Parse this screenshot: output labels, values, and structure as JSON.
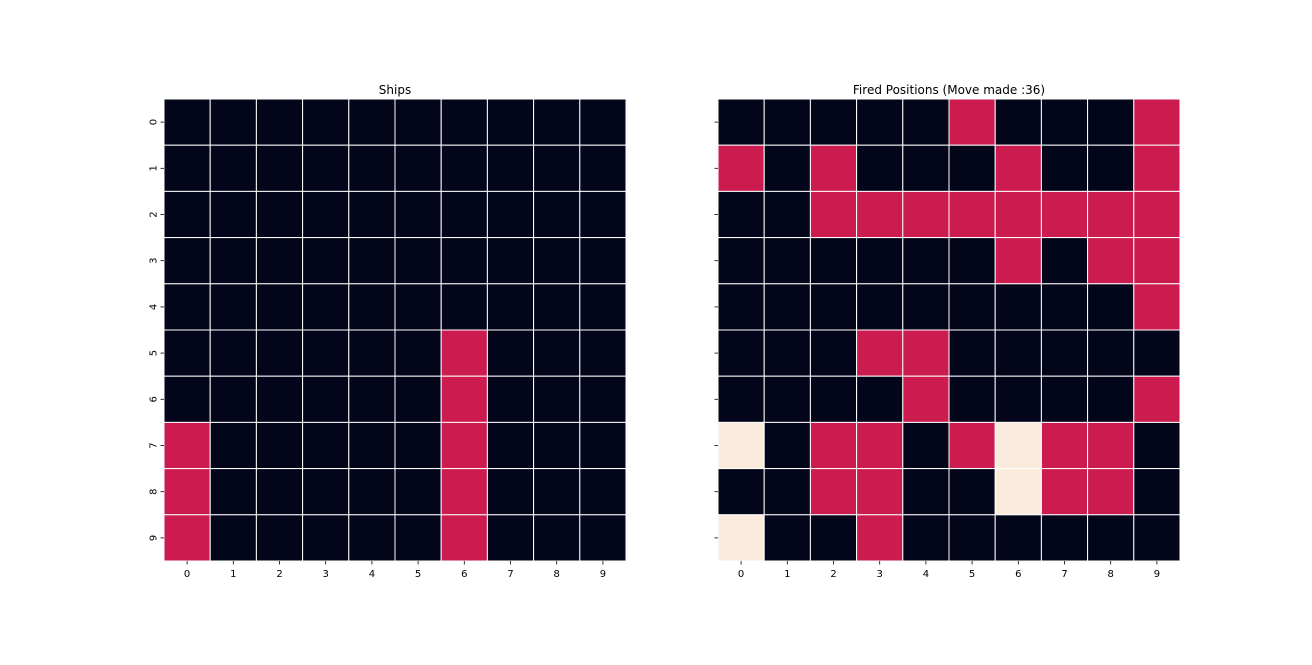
{
  "palette": {
    "0": "#03051a",
    "1": "#cb1b4f",
    "2": "#faebdd",
    "grid_line": "#ffffff"
  },
  "chart_data": [
    {
      "type": "heatmap",
      "title": "Ships",
      "x": [
        "0",
        "1",
        "2",
        "3",
        "4",
        "5",
        "6",
        "7",
        "8",
        "9"
      ],
      "y": [
        "0",
        "1",
        "2",
        "3",
        "4",
        "5",
        "6",
        "7",
        "8",
        "9"
      ],
      "show_y_labels": true,
      "colorbar": false,
      "values": [
        [
          0,
          0,
          0,
          0,
          0,
          0,
          0,
          0,
          0,
          0
        ],
        [
          0,
          0,
          0,
          0,
          0,
          0,
          0,
          0,
          0,
          0
        ],
        [
          0,
          0,
          0,
          0,
          0,
          0,
          0,
          0,
          0,
          0
        ],
        [
          0,
          0,
          0,
          0,
          0,
          0,
          0,
          0,
          0,
          0
        ],
        [
          0,
          0,
          0,
          0,
          0,
          0,
          0,
          0,
          0,
          0
        ],
        [
          0,
          0,
          0,
          0,
          0,
          0,
          1,
          0,
          0,
          0
        ],
        [
          0,
          0,
          0,
          0,
          0,
          0,
          1,
          0,
          0,
          0
        ],
        [
          1,
          0,
          0,
          0,
          0,
          0,
          1,
          0,
          0,
          0
        ],
        [
          1,
          0,
          0,
          0,
          0,
          0,
          1,
          0,
          0,
          0
        ],
        [
          1,
          0,
          0,
          0,
          0,
          0,
          1,
          0,
          0,
          0
        ]
      ]
    },
    {
      "type": "heatmap",
      "title": "Fired Positions (Move made :36)",
      "x": [
        "0",
        "1",
        "2",
        "3",
        "4",
        "5",
        "6",
        "7",
        "8",
        "9"
      ],
      "y": [
        "0",
        "1",
        "2",
        "3",
        "4",
        "5",
        "6",
        "7",
        "8",
        "9"
      ],
      "show_y_labels": false,
      "colorbar": false,
      "values": [
        [
          0,
          0,
          0,
          0,
          0,
          1,
          0,
          0,
          0,
          1
        ],
        [
          1,
          0,
          1,
          0,
          0,
          0,
          1,
          0,
          0,
          1
        ],
        [
          0,
          0,
          1,
          1,
          1,
          1,
          1,
          1,
          1,
          1
        ],
        [
          0,
          0,
          0,
          0,
          0,
          0,
          1,
          0,
          1,
          1
        ],
        [
          0,
          0,
          0,
          0,
          0,
          0,
          0,
          0,
          0,
          1
        ],
        [
          0,
          0,
          0,
          1,
          1,
          0,
          0,
          0,
          0,
          0
        ],
        [
          0,
          0,
          0,
          0,
          1,
          0,
          0,
          0,
          0,
          1
        ],
        [
          2,
          0,
          1,
          1,
          0,
          1,
          2,
          1,
          1,
          0
        ],
        [
          0,
          0,
          1,
          1,
          0,
          0,
          2,
          1,
          1,
          0
        ],
        [
          2,
          0,
          0,
          1,
          0,
          0,
          0,
          0,
          0,
          0
        ]
      ]
    }
  ]
}
